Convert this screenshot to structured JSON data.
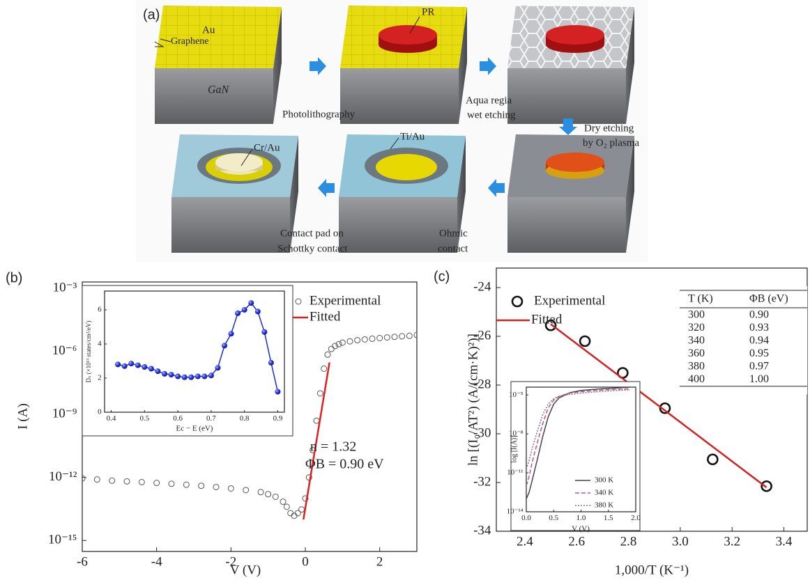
{
  "panel_a": {
    "label": "(a)",
    "au": "Au",
    "graphene": "Graphene",
    "gan": "GaN",
    "pr": "PR",
    "photolithography": "Photolithography",
    "wet_etching": [
      "Aqua regia",
      "wet etching"
    ],
    "dry_etching": [
      "Dry etching",
      "by O₂ plasma"
    ],
    "cr_au": "Cr/Au",
    "ti_au": "Ti/Au",
    "contact_pad": [
      "Contact pad on",
      "Schottky contact"
    ],
    "ohmic": [
      "Ohmic",
      "contact"
    ]
  },
  "chart_data": [
    {
      "type": "scatter",
      "panel_label": "(b)",
      "x_label": "V (V)",
      "y_label": "I (A)",
      "xlim": [
        -6,
        3
      ],
      "xticks": [
        -6,
        -4,
        -2,
        0,
        2
      ],
      "yscale": "log",
      "ylim": [
        3e-16,
        0.002
      ],
      "yticks": [
        {
          "value": 1e-15,
          "label": "10⁻¹⁵"
        },
        {
          "value": 1e-12,
          "label": "10⁻¹²"
        },
        {
          "value": 1e-09,
          "label": "10⁻⁹"
        },
        {
          "value": 1e-06,
          "label": "10⁻⁶"
        },
        {
          "value": 0.001,
          "label": "10⁻³"
        }
      ],
      "series": [
        {
          "name": "Experimental",
          "color": "#555555",
          "marker": "open-circle",
          "x": [
            -6,
            -5.6,
            -5.2,
            -4.8,
            -4.4,
            -4.0,
            -3.6,
            -3.2,
            -2.8,
            -2.4,
            -2.0,
            -1.6,
            -1.2,
            -1.0,
            -0.8,
            -0.6,
            -0.5,
            -0.4,
            -0.3,
            -0.2,
            -0.1,
            0.0,
            0.1,
            0.2,
            0.3,
            0.4,
            0.5,
            0.6,
            0.7,
            0.8,
            0.9,
            1.0,
            1.2,
            1.4,
            1.6,
            1.8,
            2.0,
            2.2,
            2.4,
            2.6,
            2.8,
            3.0
          ],
          "values": [
            9e-13,
            8e-13,
            7e-13,
            6.5e-13,
            6e-13,
            5.5e-13,
            5e-13,
            4.5e-13,
            4e-13,
            3.5e-13,
            3e-13,
            2.5e-13,
            2e-13,
            1.6e-13,
            1.2e-13,
            7e-14,
            4e-14,
            2e-14,
            1.5e-14,
            2e-14,
            3e-14,
            1e-13,
            1e-12,
            2e-11,
            5e-10,
            1e-08,
            1.5e-07,
            7e-07,
            1.3e-06,
            1.8e-06,
            2.2e-06,
            2.6e-06,
            3e-06,
            3.4e-06,
            3.7e-06,
            4e-06,
            4.3e-06,
            4.6e-06,
            4.9e-06,
            5.2e-06,
            5.5e-06,
            6e-06
          ]
        },
        {
          "name": "Fitted",
          "color": "#e02020",
          "marker": "line",
          "x": [
            -0.05,
            0.65
          ],
          "values": [
            1e-14,
            3e-07
          ]
        }
      ],
      "annotations": [
        "n = 1.32",
        "ΦB = 0.90 eV"
      ]
    },
    {
      "type": "line",
      "x_label": "Ec − E (eV)",
      "y_label": "Dₛ (×10¹³ states/cm²/eV)",
      "xlim": [
        0.38,
        0.92
      ],
      "xticks": [
        0.4,
        0.5,
        0.6,
        0.7,
        0.8,
        0.9
      ],
      "ylim": [
        0,
        7.1
      ],
      "yticks": [
        0,
        2,
        4,
        6
      ],
      "series": [
        {
          "color": "#1a2ad8",
          "marker": "sphere",
          "x": [
            0.42,
            0.44,
            0.46,
            0.48,
            0.5,
            0.52,
            0.54,
            0.56,
            0.58,
            0.6,
            0.62,
            0.64,
            0.66,
            0.68,
            0.7,
            0.72,
            0.74,
            0.76,
            0.78,
            0.8,
            0.82,
            0.84,
            0.86,
            0.88,
            0.9
          ],
          "values": [
            2.8,
            2.7,
            2.85,
            2.75,
            2.65,
            2.55,
            2.4,
            2.25,
            2.2,
            2.1,
            2.05,
            2.05,
            2.1,
            2.1,
            2.15,
            2.6,
            3.9,
            4.6,
            5.8,
            6.0,
            6.4,
            5.9,
            4.7,
            2.9,
            1.2
          ]
        }
      ]
    },
    {
      "type": "scatter",
      "panel_label": "(c)",
      "x_label": "1,000/T (K⁻¹)",
      "y_label": "ln [(I₀/AT²) (A/(cm·K)²)]",
      "xlim": [
        2.29,
        3.49
      ],
      "xticks": [
        2.4,
        2.6,
        2.8,
        {
          "value": 3,
          "label": "3.0"
        },
        3.2,
        3.4
      ],
      "ylim": [
        -34,
        -23.2
      ],
      "yticks": [
        -34,
        -32,
        -30,
        -28,
        -26,
        -24
      ],
      "series": [
        {
          "name": "Experimental",
          "color": "#111111",
          "marker": "open-circle",
          "x": [
            2.5,
            2.632,
            2.778,
            2.941,
            3.125,
            3.333
          ],
          "values": [
            -25.55,
            -26.2,
            -27.5,
            -28.95,
            -31.05,
            -32.15
          ]
        },
        {
          "name": "Fitted",
          "color": "#d42020",
          "marker": "line",
          "x": [
            2.5,
            3.333
          ],
          "values": [
            -25.5,
            -32.2
          ]
        }
      ],
      "table": {
        "header": [
          "T (K)",
          "ΦB (eV)"
        ],
        "rows": [
          [
            "300",
            "0.90"
          ],
          [
            "320",
            "0.93"
          ],
          [
            "340",
            "0.94"
          ],
          [
            "360",
            "0.95"
          ],
          [
            "380",
            "0.97"
          ],
          [
            "400",
            "1.00"
          ]
        ]
      }
    },
    {
      "type": "line",
      "x_label": "V (V)",
      "y_label": "log [I(A)]",
      "xlim": [
        0,
        2
      ],
      "xticks": [
        {
          "value": 0,
          "label": "0.0"
        },
        0.5,
        {
          "value": 1,
          "label": "1.0"
        },
        1.5,
        {
          "value": 2,
          "label": "2.0"
        }
      ],
      "yscale": "log",
      "ylim": [
        1e-14,
        4e-05
      ],
      "yticks": [
        {
          "value": 1e-14,
          "label": "10⁻¹⁴"
        },
        {
          "value": 1e-11,
          "label": "10⁻¹¹"
        },
        {
          "value": 1e-08,
          "label": "10⁻⁸"
        },
        {
          "value": 1e-05,
          "label": "10⁻⁵"
        }
      ],
      "series": [
        {
          "name": "300 K",
          "color": "#444444",
          "dash": "solid",
          "x": [
            0,
            0.05,
            0.1,
            0.2,
            0.3,
            0.4,
            0.5,
            0.6,
            0.8,
            1.0,
            1.4,
            1.9
          ],
          "values": [
            1e-13,
            3e-13,
            2e-12,
            1e-10,
            6e-09,
            2e-07,
            2e-06,
            6e-06,
            1.5e-05,
            2.2e-05,
            3e-05,
            4e-05
          ]
        },
        {
          "name": "340 K",
          "color": "#c0508a",
          "dash": "dashed",
          "x": [
            0,
            0.05,
            0.1,
            0.2,
            0.3,
            0.4,
            0.5,
            0.6,
            0.8,
            1.0,
            1.4,
            1.9
          ],
          "values": [
            1e-12,
            5e-12,
            5e-11,
            2e-09,
            6e-08,
            1e-06,
            4e-06,
            8e-06,
            1.4e-05,
            1.8e-05,
            2.4e-05,
            3e-05
          ]
        },
        {
          "name": "380 K",
          "color": "#777777",
          "dash": "dotted",
          "x": [
            0,
            0.05,
            0.1,
            0.2,
            0.3,
            0.4,
            0.5,
            0.6,
            0.8,
            1.0,
            1.4,
            1.9
          ],
          "values": [
            2e-11,
            8e-11,
            6e-10,
            1.5e-08,
            3e-07,
            2e-06,
            5e-06,
            8e-06,
            1.1e-05,
            1.4e-05,
            1.9e-05,
            2.5e-05
          ]
        }
      ]
    }
  ]
}
